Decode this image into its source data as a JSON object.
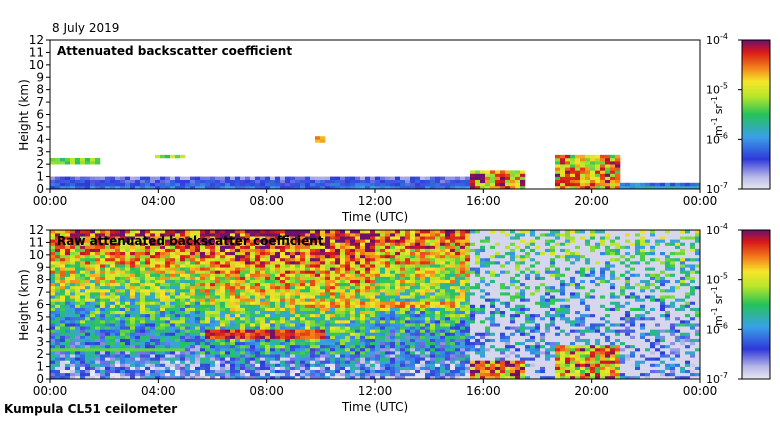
{
  "date_label": "8 July 2019",
  "instrument_label": "Kumpula CL51 ceilometer",
  "chart_data": [
    {
      "type": "heatmap",
      "title": "Attenuated backscatter coefficient",
      "xlabel": "Time (UTC)",
      "ylabel": "Height (km)",
      "x_ticks": [
        "00:00",
        "04:00",
        "08:00",
        "12:00",
        "16:00",
        "20:00",
        "00:00"
      ],
      "xlim_hours": [
        0,
        24
      ],
      "y_ticks": [
        0,
        1,
        2,
        3,
        4,
        5,
        6,
        7,
        8,
        9,
        10,
        11,
        12
      ],
      "ylim": [
        0,
        12
      ],
      "colorbar": {
        "scale": "log",
        "range": [
          1e-07,
          0.0001
        ],
        "ticks": [
          {
            "base": "10",
            "exp": "-7"
          },
          {
            "base": "10",
            "exp": "-6"
          },
          {
            "base": "10",
            "exp": "-5"
          },
          {
            "base": "10",
            "exp": "-4"
          }
        ],
        "unit_m": "m",
        "unit_m_exp": "-1",
        "unit_sr": "sr",
        "unit_sr_exp": "-1"
      },
      "features": [
        {
          "name": "boundary layer",
          "t_start": 0,
          "t_end": 15.6,
          "height_top_km": 0.9,
          "level": 0.3
        },
        {
          "name": "cloud layer",
          "t_start": 0,
          "t_end": 1.8,
          "height_km": 2.3,
          "level": 0.55
        },
        {
          "name": "cloud layer",
          "t_start": 3.9,
          "t_end": 5.0,
          "height_km": 2.6,
          "level": 0.6
        },
        {
          "name": "cloud",
          "t_start": 9.8,
          "t_end": 10.1,
          "height_km": 4.0,
          "level": 0.8
        },
        {
          "name": "rain",
          "t_start": 15.6,
          "t_end": 17.5,
          "height_top_km": 1.5,
          "level": 0.8
        },
        {
          "name": "rain",
          "t_start": 18.7,
          "t_end": 21.0,
          "height_top_km": 2.8,
          "level": 0.75
        },
        {
          "name": "surface layer",
          "t_start": 21.0,
          "t_end": 24,
          "height_top_km": 0.5,
          "level": 0.45
        }
      ]
    },
    {
      "type": "heatmap",
      "title": "Raw attenuated backscatter coefficient",
      "xlabel": "Time (UTC)",
      "ylabel": "Height (km)",
      "x_ticks": [
        "00:00",
        "04:00",
        "08:00",
        "12:00",
        "16:00",
        "20:00",
        "00:00"
      ],
      "xlim_hours": [
        0,
        24
      ],
      "y_ticks": [
        0,
        1,
        2,
        3,
        4,
        5,
        6,
        7,
        8,
        9,
        10,
        11,
        12
      ],
      "ylim": [
        0,
        12
      ],
      "colorbar": {
        "scale": "log",
        "range": [
          1e-07,
          0.0001
        ],
        "ticks": [
          {
            "base": "10",
            "exp": "-7"
          },
          {
            "base": "10",
            "exp": "-6"
          },
          {
            "base": "10",
            "exp": "-5"
          },
          {
            "base": "10",
            "exp": "-4"
          }
        ],
        "unit_m": "m",
        "unit_m_exp": "-1",
        "unit_sr": "sr",
        "unit_sr_exp": "-1"
      },
      "features": [
        {
          "name": "noise gradient",
          "t_start": 0,
          "t_end": 15.6,
          "level_low": 0.15,
          "level_high": 0.85
        },
        {
          "name": "aerosol layer",
          "t_start": 5.8,
          "t_end": 10.2,
          "height_km": 3.6,
          "level": 0.9
        },
        {
          "name": "aerosol layer",
          "t_start": 9.5,
          "t_end": 15.0,
          "height_km": 6.0,
          "level": 0.78
        },
        {
          "name": "cloud layer",
          "t_start": 0,
          "t_end": 5.0,
          "height_km": 2.3,
          "level": 0.55
        },
        {
          "name": "rain",
          "t_start": 15.6,
          "t_end": 17.5,
          "height_top_km": 1.5,
          "level": 0.8
        },
        {
          "name": "rain",
          "t_start": 18.7,
          "t_end": 21.0,
          "height_top_km": 2.8,
          "level": 0.75
        }
      ]
    }
  ]
}
